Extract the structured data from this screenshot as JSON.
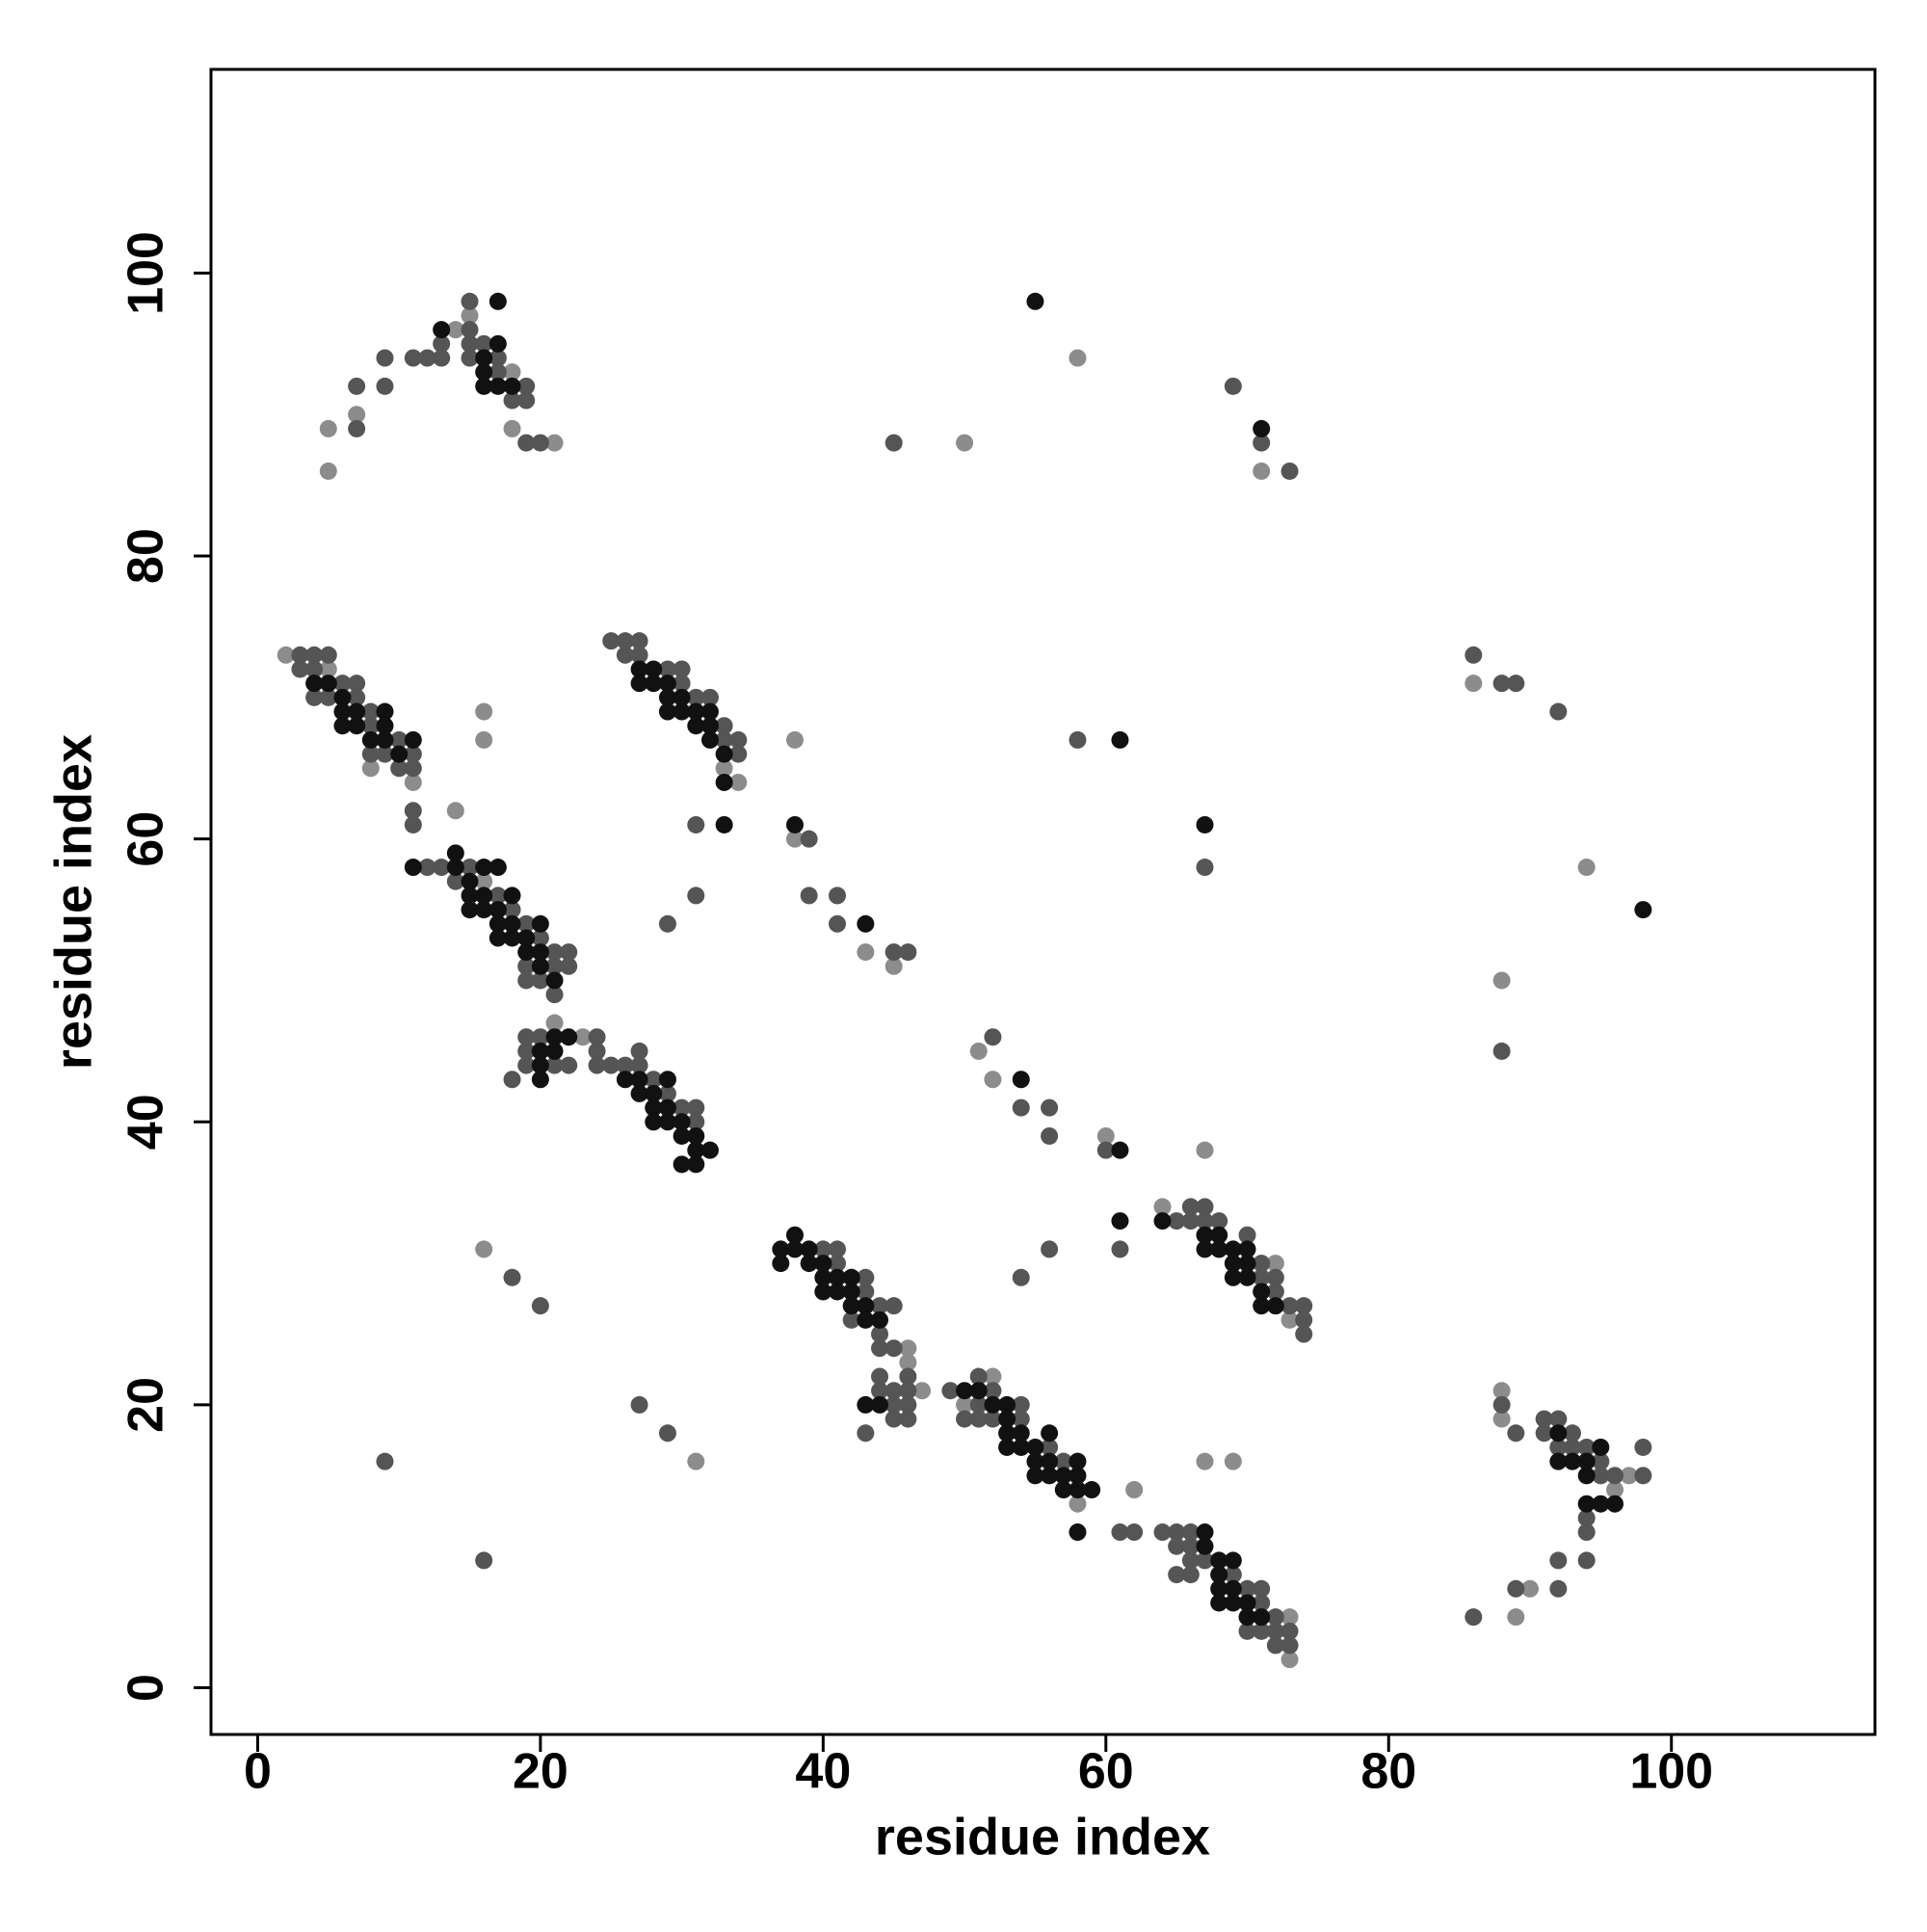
{
  "chart_data": {
    "type": "scatter",
    "xlabel": "residue index",
    "ylabel": "residue index",
    "xlim": [
      -3.3,
      114.4
    ],
    "ylim": [
      -3.3,
      114.4
    ],
    "xticks": [
      0,
      20,
      40,
      60,
      80,
      100
    ],
    "yticks": [
      0,
      20,
      40,
      60,
      80,
      100
    ],
    "grid": false,
    "series": [
      {
        "color": "#8c8c8c",
        "x": [
          2,
          5,
          8,
          11,
          16,
          16,
          14,
          16,
          21,
          23,
          33,
          34,
          38,
          38,
          43,
          45,
          51,
          52,
          60,
          67,
          46,
          46,
          47,
          50,
          52,
          58,
          62,
          73,
          73,
          67,
          69,
          64,
          72,
          73,
          5,
          5,
          7,
          14,
          15,
          18,
          18,
          21,
          50,
          58,
          71,
          86,
          94,
          88,
          88,
          88,
          96,
          97,
          90,
          89,
          16,
          31
        ],
        "values": [
          73,
          72,
          65,
          64,
          69,
          67,
          62,
          57,
          47,
          46,
          65,
          64,
          67,
          60,
          52,
          51,
          45,
          43,
          39,
          38,
          24,
          23,
          21,
          20,
          22,
          13,
          14,
          5,
          2,
          16,
          16,
          34,
          30,
          26,
          89,
          86,
          90,
          96,
          97,
          93,
          89,
          88,
          88,
          94,
          86,
          71,
          58,
          50,
          21,
          19,
          14,
          15,
          7,
          5,
          31,
          16
        ]
      },
      {
        "color": "#555555",
        "x": [
          3,
          3,
          4,
          4,
          4,
          5,
          5,
          6,
          7,
          7,
          8,
          8,
          8,
          9,
          10,
          10,
          11,
          11,
          11,
          11,
          12,
          13,
          14,
          15,
          17,
          18,
          19,
          19,
          19,
          20,
          20,
          21,
          21,
          21,
          22,
          22,
          18,
          19,
          19,
          19,
          20,
          21,
          22,
          24,
          24,
          24,
          25,
          26,
          27,
          27,
          28,
          29,
          30,
          31,
          31,
          25,
          26,
          26,
          27,
          27,
          29,
          30,
          30,
          31,
          32,
          33,
          33,
          34,
          34,
          31,
          31,
          29,
          40,
          41,
          41,
          42,
          43,
          43,
          44,
          44,
          44,
          44,
          44,
          43,
          45,
          45,
          45,
          45,
          45,
          46,
          46,
          46,
          46,
          49,
          50,
          51,
          51,
          51,
          52,
          52,
          54,
          54,
          56,
          57,
          61,
          62,
          64,
          65,
          65,
          65,
          66,
          66,
          66,
          66,
          67,
          69,
          70,
          70,
          71,
          71,
          71,
          72,
          72,
          72,
          73,
          73,
          65,
          66,
          66,
          67,
          67,
          68,
          70,
          71,
          71,
          72,
          72,
          73,
          74,
          74,
          74,
          61,
          56,
          54,
          39,
          39,
          41,
          41,
          45,
          46,
          52,
          54,
          56,
          56,
          60,
          58,
          67,
          7,
          7,
          9,
          9,
          11,
          12,
          13,
          13,
          15,
          15,
          15,
          15,
          16,
          17,
          17,
          18,
          19,
          19,
          19,
          20,
          45,
          69,
          71,
          73,
          86,
          88,
          89,
          92,
          88,
          88,
          89,
          91,
          91,
          92,
          92,
          93,
          93,
          94,
          94,
          94,
          95,
          95,
          96,
          98,
          98,
          92,
          92,
          94,
          89,
          86,
          9,
          16,
          18,
          20,
          27,
          29
        ],
        "values": [
          73,
          72,
          73,
          72,
          70,
          73,
          70,
          71,
          71,
          70,
          69,
          68,
          66,
          66,
          67,
          65,
          66,
          65,
          62,
          61,
          58,
          58,
          57,
          58,
          56,
          55,
          54,
          51,
          50,
          53,
          50,
          52,
          51,
          49,
          52,
          51,
          43,
          46,
          45,
          44,
          46,
          44,
          44,
          46,
          45,
          44,
          44,
          44,
          45,
          44,
          43,
          42,
          41,
          41,
          40,
          74,
          74,
          73,
          74,
          73,
          72,
          72,
          71,
          70,
          70,
          68,
          67,
          67,
          66,
          61,
          56,
          54,
          31,
          31,
          30,
          26,
          29,
          28,
          27,
          25,
          24,
          22,
          21,
          18,
          27,
          24,
          21,
          20,
          19,
          22,
          21,
          20,
          19,
          21,
          19,
          22,
          20,
          19,
          21,
          19,
          20,
          19,
          17,
          16,
          11,
          11,
          11,
          11,
          10,
          8,
          11,
          10,
          9,
          8,
          9,
          8,
          7,
          4,
          7,
          6,
          4,
          5,
          4,
          3,
          4,
          3,
          33,
          34,
          33,
          34,
          33,
          33,
          32,
          30,
          29,
          29,
          28,
          27,
          27,
          26,
          25,
          31,
          31,
          29,
          60,
          56,
          56,
          54,
          52,
          52,
          46,
          41,
          41,
          39,
          38,
          67,
          58,
          92,
          89,
          94,
          92,
          94,
          94,
          95,
          94,
          98,
          96,
          95,
          94,
          95,
          94,
          93,
          91,
          92,
          91,
          88,
          88,
          88,
          92,
          88,
          86,
          73,
          71,
          71,
          69,
          45,
          20,
          18,
          19,
          18,
          19,
          17,
          18,
          17,
          17,
          12,
          11,
          16,
          15,
          15,
          17,
          15,
          9,
          7,
          9,
          7,
          5,
          16,
          9,
          29,
          27,
          20,
          18
        ]
      },
      {
        "color": "#111111",
        "x": [
          4,
          5,
          6,
          6,
          6,
          7,
          7,
          8,
          9,
          9,
          9,
          10,
          11,
          11,
          14,
          14,
          15,
          15,
          15,
          16,
          16,
          16,
          17,
          17,
          17,
          17,
          18,
          18,
          18,
          19,
          19,
          20,
          20,
          20,
          21,
          20,
          20,
          20,
          21,
          21,
          22,
          26,
          27,
          27,
          28,
          28,
          28,
          29,
          29,
          29,
          30,
          30,
          30,
          31,
          31,
          31,
          32,
          27,
          27,
          28,
          28,
          29,
          29,
          29,
          30,
          30,
          31,
          31,
          32,
          32,
          32,
          33,
          33,
          33,
          37,
          37,
          38,
          38,
          39,
          39,
          40,
          40,
          40,
          41,
          41,
          42,
          42,
          42,
          43,
          43,
          44,
          43,
          44,
          38,
          50,
          51,
          52,
          53,
          53,
          53,
          53,
          54,
          54,
          55,
          55,
          55,
          56,
          56,
          56,
          57,
          57,
          58,
          58,
          58,
          58,
          59,
          67,
          67,
          68,
          68,
          68,
          68,
          69,
          69,
          69,
          70,
          70,
          71,
          67,
          67,
          68,
          68,
          69,
          69,
          69,
          70,
          70,
          70,
          71,
          71,
          72,
          61,
          64,
          17,
          13,
          17,
          16,
          16,
          16,
          17,
          18,
          92,
          92,
          93,
          94,
          94,
          94,
          95,
          96,
          95,
          61,
          54,
          43,
          61,
          98,
          55,
          71,
          67
        ],
        "values": [
          71,
          71,
          70,
          69,
          68,
          69,
          68,
          67,
          69,
          68,
          67,
          66,
          67,
          58,
          59,
          58,
          57,
          56,
          55,
          58,
          56,
          55,
          58,
          55,
          54,
          53,
          56,
          54,
          53,
          53,
          52,
          54,
          52,
          51,
          50,
          45,
          44,
          43,
          46,
          45,
          46,
          43,
          43,
          42,
          42,
          41,
          40,
          43,
          41,
          40,
          40,
          39,
          37,
          39,
          38,
          37,
          38,
          72,
          71,
          72,
          71,
          71,
          70,
          69,
          70,
          69,
          69,
          68,
          69,
          68,
          67,
          66,
          64,
          61,
          31,
          30,
          32,
          31,
          31,
          30,
          30,
          29,
          28,
          29,
          28,
          29,
          28,
          27,
          27,
          26,
          26,
          20,
          20,
          61,
          21,
          21,
          20,
          20,
          19,
          18,
          17,
          18,
          17,
          17,
          16,
          15,
          18,
          16,
          15,
          15,
          14,
          16,
          15,
          14,
          11,
          14,
          11,
          10,
          9,
          8,
          7,
          6,
          9,
          7,
          6,
          6,
          5,
          5,
          32,
          31,
          32,
          31,
          31,
          30,
          29,
          31,
          30,
          29,
          28,
          27,
          27,
          33,
          33,
          98,
          96,
          95,
          94,
          93,
          92,
          92,
          92,
          18,
          16,
          16,
          16,
          15,
          13,
          13,
          13,
          17,
          38,
          43,
          54,
          67,
          55,
          98,
          89,
          61
        ]
      }
    ]
  }
}
